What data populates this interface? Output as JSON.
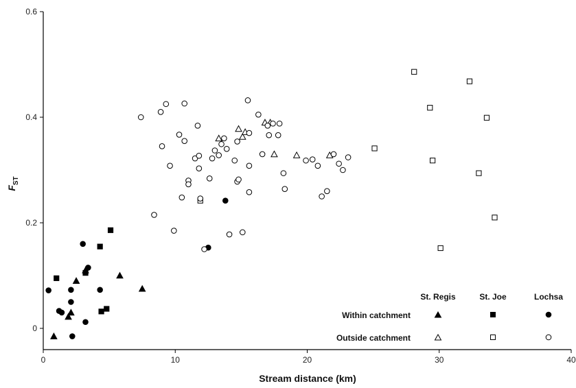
{
  "chart_data": {
    "type": "scatter",
    "xlabel": "Stream distance (km)",
    "ylabel_main": "F",
    "ylabel_sub": "ST",
    "xlim": [
      0,
      40
    ],
    "ylim": [
      -0.04,
      0.6
    ],
    "xticks": [
      0,
      10,
      20,
      30,
      40
    ],
    "yticks": [
      0,
      0.2,
      0.4,
      0.6
    ],
    "xtick_labels": [
      "0",
      "10",
      "20",
      "30",
      "40"
    ],
    "ytick_labels": [
      "0",
      "0.2",
      "0.4",
      "0.6"
    ],
    "grid": false,
    "legend": {
      "placement": "bottom-right",
      "columns": [
        "St. Regis",
        "St. Joe",
        "Lochsa"
      ],
      "rows": [
        "Within catchment",
        "Outside catchment"
      ]
    },
    "series": [
      {
        "name": "St. Regis (within catchment)",
        "marker": "triangle",
        "filled": true,
        "points": [
          [
            0.8,
            -0.015
          ],
          [
            1.9,
            0.022
          ],
          [
            2.1,
            0.03
          ],
          [
            2.5,
            0.09
          ],
          [
            3.2,
            0.11
          ],
          [
            5.8,
            0.1
          ],
          [
            7.5,
            0.075
          ]
        ]
      },
      {
        "name": "St. Joe (within catchment)",
        "marker": "square",
        "filled": true,
        "points": [
          [
            1.0,
            0.095
          ],
          [
            3.2,
            0.105
          ],
          [
            4.3,
            0.155
          ],
          [
            4.4,
            0.032
          ],
          [
            4.8,
            0.037
          ],
          [
            5.1,
            0.186
          ]
        ]
      },
      {
        "name": "Lochsa (within catchment)",
        "marker": "circle",
        "filled": true,
        "points": [
          [
            0.4,
            0.072
          ],
          [
            1.2,
            0.033
          ],
          [
            1.4,
            0.03
          ],
          [
            2.1,
            0.073
          ],
          [
            2.1,
            0.05
          ],
          [
            2.2,
            -0.015
          ],
          [
            3.0,
            0.16
          ],
          [
            3.2,
            0.012
          ],
          [
            3.4,
            0.115
          ],
          [
            4.3,
            0.073
          ],
          [
            12.5,
            0.153
          ],
          [
            13.8,
            0.242
          ]
        ]
      },
      {
        "name": "St. Regis (outside catchment)",
        "marker": "triangle",
        "filled": false,
        "points": [
          [
            13.3,
            0.36
          ],
          [
            14.8,
            0.378
          ],
          [
            15.1,
            0.363
          ],
          [
            15.3,
            0.372
          ],
          [
            16.8,
            0.39
          ],
          [
            17.2,
            0.39
          ],
          [
            17.5,
            0.33
          ],
          [
            19.2,
            0.328
          ],
          [
            21.7,
            0.328
          ]
        ]
      },
      {
        "name": "St. Joe (outside catchment)",
        "marker": "square",
        "filled": false,
        "points": [
          [
            11.9,
            0.242
          ],
          [
            25.1,
            0.341
          ],
          [
            28.1,
            0.486
          ],
          [
            29.3,
            0.418
          ],
          [
            29.5,
            0.318
          ],
          [
            30.1,
            0.152
          ],
          [
            32.3,
            0.468
          ],
          [
            33.0,
            0.294
          ],
          [
            33.6,
            0.399
          ],
          [
            34.2,
            0.21
          ]
        ]
      },
      {
        "name": "Lochsa (outside catchment)",
        "marker": "circle",
        "filled": false,
        "points": [
          [
            7.4,
            0.4
          ],
          [
            8.4,
            0.215
          ],
          [
            8.9,
            0.41
          ],
          [
            9.0,
            0.345
          ],
          [
            9.3,
            0.425
          ],
          [
            9.6,
            0.308
          ],
          [
            9.9,
            0.185
          ],
          [
            10.3,
            0.367
          ],
          [
            10.5,
            0.248
          ],
          [
            10.7,
            0.426
          ],
          [
            10.7,
            0.355
          ],
          [
            11.0,
            0.28
          ],
          [
            11.0,
            0.273
          ],
          [
            11.5,
            0.322
          ],
          [
            11.7,
            0.384
          ],
          [
            11.8,
            0.327
          ],
          [
            11.8,
            0.303
          ],
          [
            11.9,
            0.246
          ],
          [
            12.2,
            0.15
          ],
          [
            12.6,
            0.284
          ],
          [
            12.8,
            0.322
          ],
          [
            13.0,
            0.337
          ],
          [
            13.3,
            0.328
          ],
          [
            13.5,
            0.349
          ],
          [
            13.7,
            0.36
          ],
          [
            13.9,
            0.34
          ],
          [
            14.1,
            0.178
          ],
          [
            14.5,
            0.318
          ],
          [
            14.7,
            0.354
          ],
          [
            14.7,
            0.278
          ],
          [
            14.8,
            0.282
          ],
          [
            15.1,
            0.182
          ],
          [
            15.5,
            0.432
          ],
          [
            15.6,
            0.37
          ],
          [
            15.6,
            0.308
          ],
          [
            15.6,
            0.258
          ],
          [
            16.3,
            0.405
          ],
          [
            16.6,
            0.33
          ],
          [
            17.0,
            0.384
          ],
          [
            17.1,
            0.366
          ],
          [
            17.4,
            0.388
          ],
          [
            17.8,
            0.366
          ],
          [
            17.9,
            0.388
          ],
          [
            18.2,
            0.294
          ],
          [
            18.3,
            0.264
          ],
          [
            19.9,
            0.318
          ],
          [
            20.4,
            0.32
          ],
          [
            20.8,
            0.308
          ],
          [
            21.1,
            0.25
          ],
          [
            21.5,
            0.26
          ],
          [
            22.0,
            0.33
          ],
          [
            22.4,
            0.312
          ],
          [
            22.7,
            0.3
          ],
          [
            23.1,
            0.324
          ]
        ]
      }
    ]
  }
}
